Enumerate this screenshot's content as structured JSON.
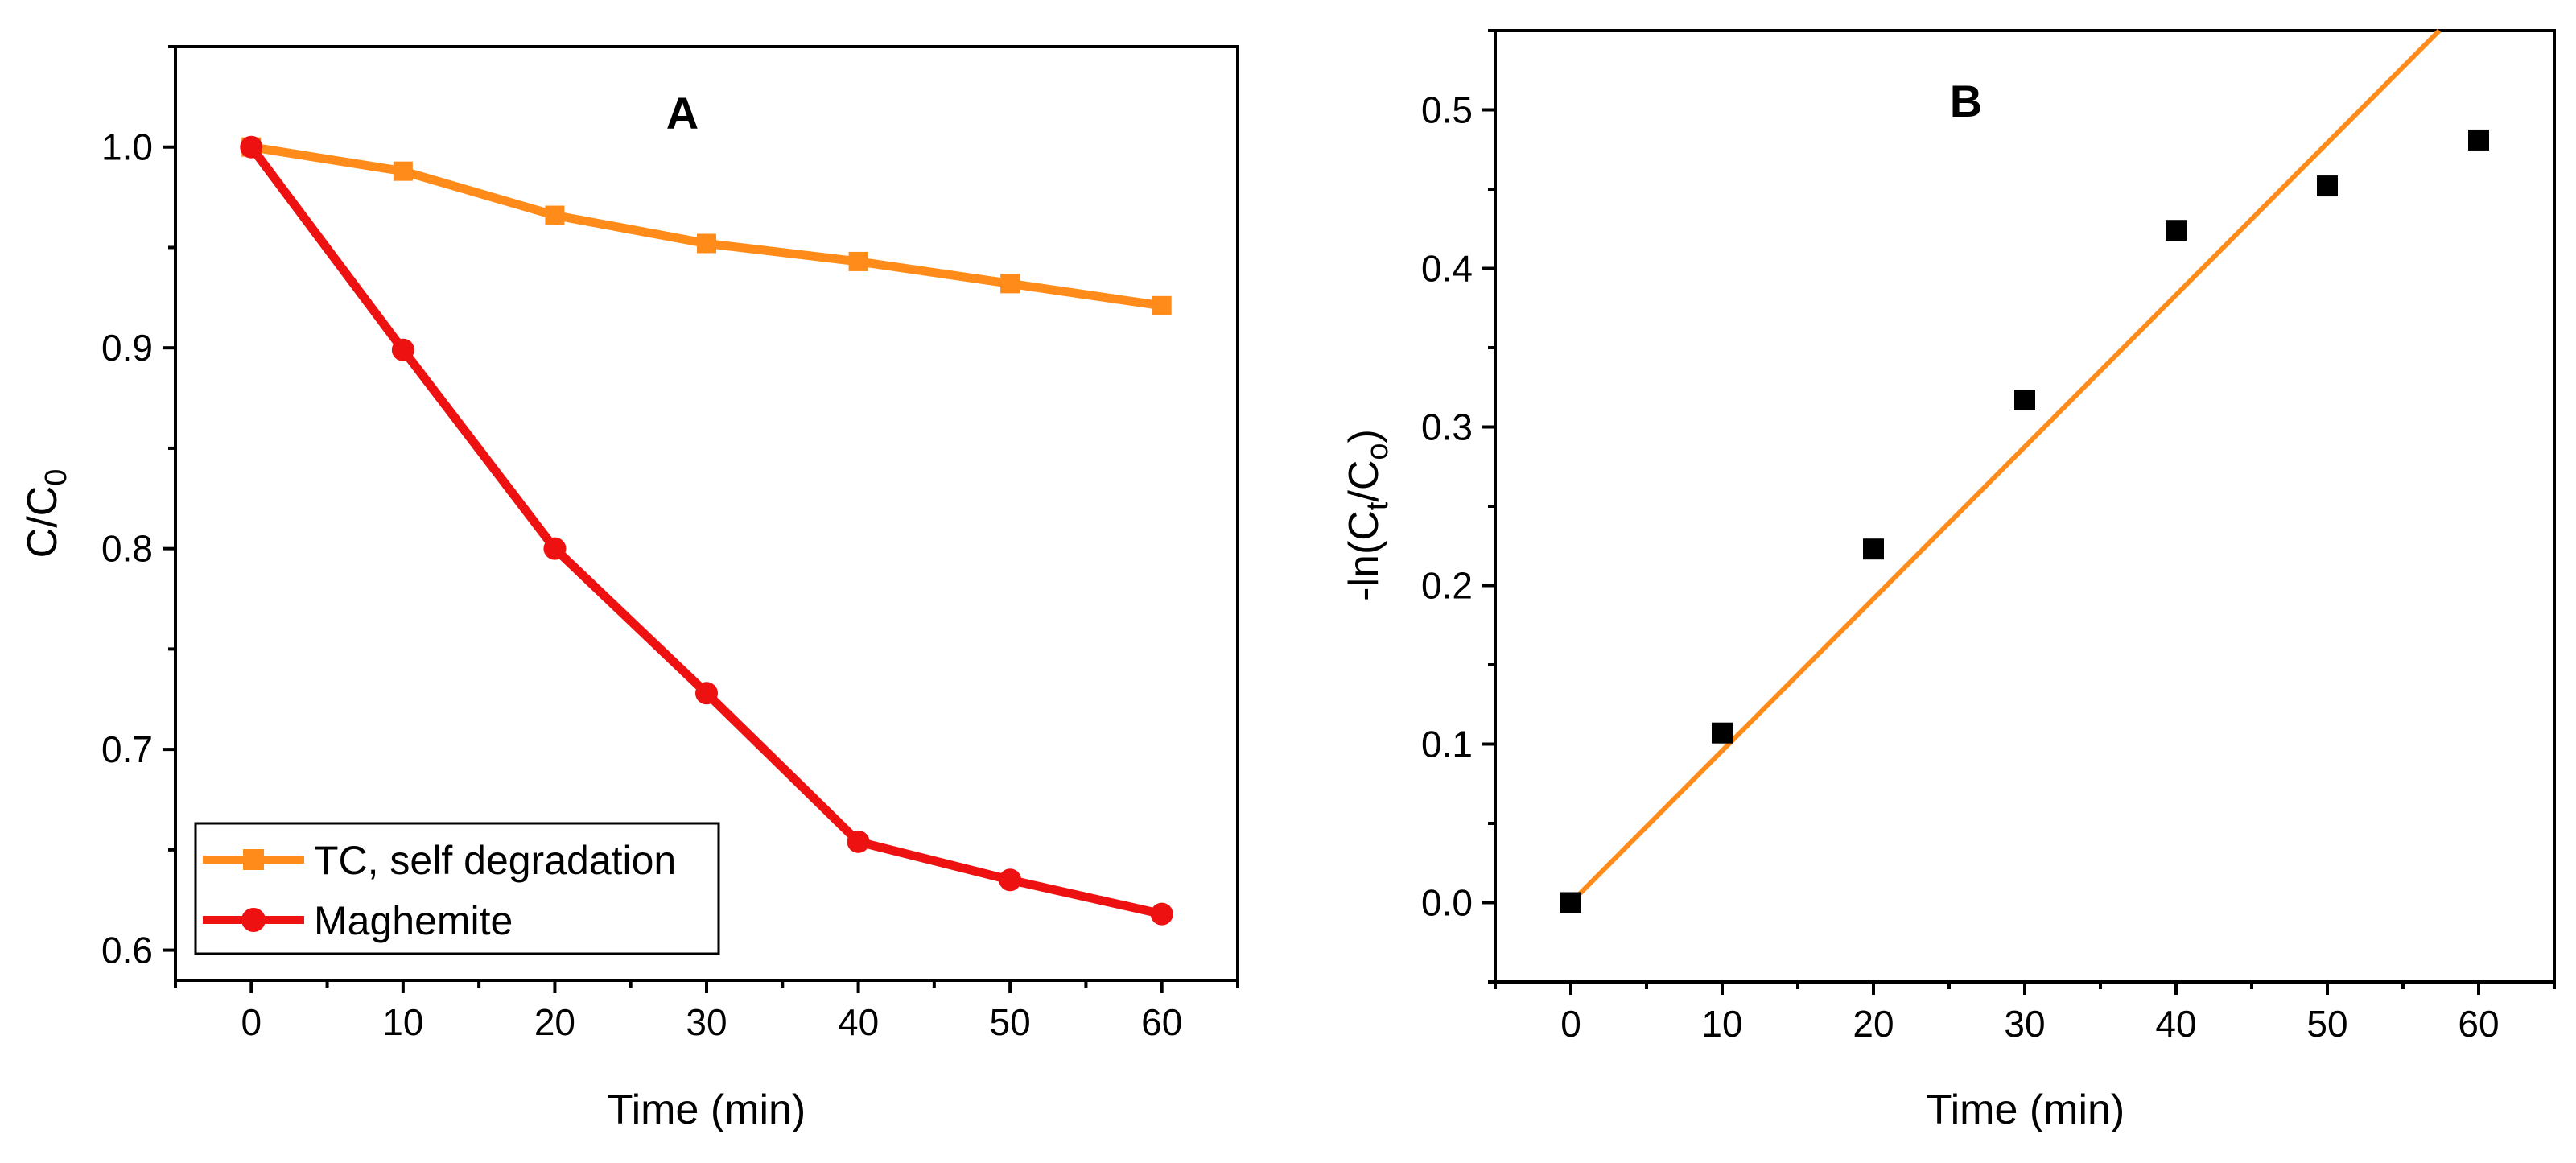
{
  "chart_data": [
    {
      "type": "line",
      "panel_label": "A",
      "title": "",
      "xlabel": "Time (min)",
      "ylabel": {
        "base": "C/C",
        "sub": "0"
      },
      "xlim": [
        -5,
        65
      ],
      "ylim": [
        0.585,
        1.05
      ],
      "xticks": [
        0,
        10,
        20,
        30,
        40,
        50,
        60
      ],
      "yticks": [
        0.6,
        0.7,
        0.8,
        0.9,
        1.0
      ],
      "ytick_labels": [
        "0.6",
        "0.7",
        "0.8",
        "0.9",
        "1.0"
      ],
      "x": [
        0,
        10,
        20,
        30,
        40,
        50,
        60
      ],
      "series": [
        {
          "name": "TC, self degradation",
          "color": "#FF8C1A",
          "marker": "square",
          "values": [
            1.0,
            0.988,
            0.966,
            0.952,
            0.943,
            0.932,
            0.921
          ]
        },
        {
          "name": "Maghemite",
          "color": "#EE1111",
          "marker": "circle",
          "values": [
            1.0,
            0.899,
            0.8,
            0.728,
            0.654,
            0.635,
            0.618
          ]
        }
      ],
      "legend": "bottom-left",
      "grid": false
    },
    {
      "type": "scatter",
      "panel_label": "B",
      "title": "",
      "xlabel": "Time (min)",
      "ylabel": {
        "pre": "-ln(C",
        "sub1": "t",
        "mid": "/C",
        "sub2": "o",
        "post": ")"
      },
      "xlim": [
        -5,
        65
      ],
      "ylim": [
        -0.05,
        0.55
      ],
      "xticks": [
        0,
        10,
        20,
        30,
        40,
        50,
        60
      ],
      "yticks": [
        0.0,
        0.1,
        0.2,
        0.3,
        0.4,
        0.5
      ],
      "ytick_labels": [
        "0.0",
        "0.1",
        "0.2",
        "0.3",
        "0.4",
        "0.5"
      ],
      "points": {
        "color": "#000000",
        "marker": "square",
        "x": [
          0,
          10,
          20,
          30,
          40,
          50,
          60
        ],
        "y": [
          0.0,
          0.107,
          0.223,
          0.317,
          0.424,
          0.452,
          0.481
        ]
      },
      "fit_line": {
        "color": "#FF8C1A",
        "x": [
          0,
          57.4
        ],
        "y": [
          0.0,
          0.55
        ]
      },
      "grid": false
    }
  ]
}
